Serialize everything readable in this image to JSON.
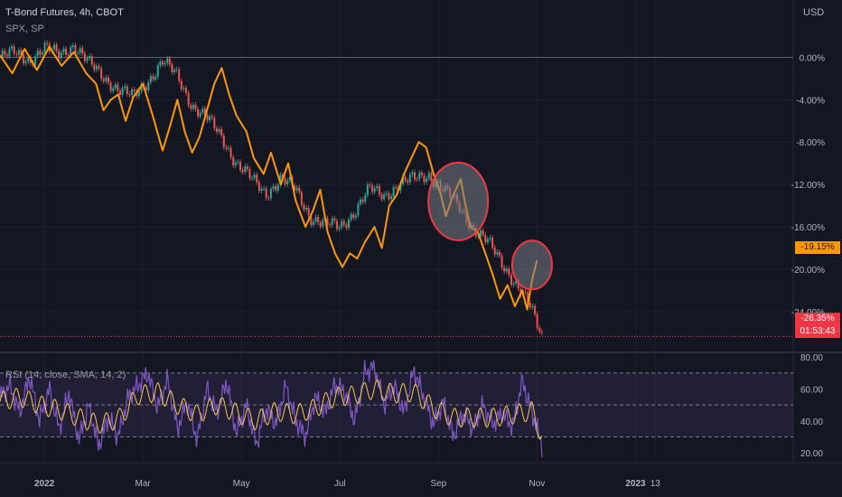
{
  "header": {
    "title": "T-Bond Futures, 4h, CBOT",
    "compare": "SPX, SP",
    "currency": "USD"
  },
  "price_tags": {
    "spx": "-19.15%",
    "tbond": "-26.35%",
    "countdown": "01:53:43"
  },
  "rsi_label": "RSI (14, close, SMA, 14, 2)",
  "colors": {
    "background": "#131722",
    "spx_line": "#ff9800",
    "candle_up": "#26a69a",
    "candle_down": "#ef5350",
    "rsi_line": "#7e57c2",
    "rsi_ma": "#f7c948",
    "highlight_circle": "#f23645"
  },
  "chart_data": [
    {
      "type": "line",
      "title": "T-Bond Futures, 4h, CBOT",
      "y_axis_unit": "%",
      "ylim": [
        -27,
        2
      ],
      "y_ticks": [
        "0.00%",
        "-4.00%",
        "-8.00%",
        "-12.00%",
        "-16.00%",
        "-20.00%",
        "-24.00%"
      ],
      "y_tick_values": [
        0,
        -4,
        -8,
        -12,
        -16,
        -20,
        -24
      ],
      "x_ticks": [
        "2022",
        "Mar",
        "May",
        "Jul",
        "Sep",
        "Nov",
        "2023",
        "13"
      ],
      "x_tick_times": [
        0,
        2,
        4,
        6,
        8,
        10,
        12,
        12.4
      ],
      "xlim": [
        -0.9,
        15.2
      ],
      "series": [
        {
          "name": "SPX",
          "style": "line",
          "points": [
            [
              -0.9,
              0.2
            ],
            [
              -0.65,
              -1.5
            ],
            [
              -0.4,
              0.8
            ],
            [
              -0.15,
              -1.2
            ],
            [
              0.1,
              1.0
            ],
            [
              0.35,
              -0.8
            ],
            [
              0.6,
              0.5
            ],
            [
              0.85,
              -1.5
            ],
            [
              1.05,
              -2.5
            ],
            [
              1.2,
              -5.0
            ],
            [
              1.35,
              -4.0
            ],
            [
              1.5,
              -3.5
            ],
            [
              1.65,
              -6.0
            ],
            [
              1.8,
              -3.8
            ],
            [
              2.0,
              -2.5
            ],
            [
              2.2,
              -5.5
            ],
            [
              2.4,
              -8.8
            ],
            [
              2.55,
              -6.5
            ],
            [
              2.7,
              -4.0
            ],
            [
              2.85,
              -7.0
            ],
            [
              3.0,
              -9.0
            ],
            [
              3.15,
              -7.5
            ],
            [
              3.3,
              -5.0
            ],
            [
              3.45,
              -2.5
            ],
            [
              3.6,
              -1.0
            ],
            [
              3.75,
              -3.5
            ],
            [
              3.9,
              -5.5
            ],
            [
              4.1,
              -7.0
            ],
            [
              4.25,
              -9.5
            ],
            [
              4.45,
              -11.0
            ],
            [
              4.6,
              -9.0
            ],
            [
              4.8,
              -12.0
            ],
            [
              4.95,
              -10.0
            ],
            [
              5.1,
              -13.5
            ],
            [
              5.3,
              -16.0
            ],
            [
              5.45,
              -14.5
            ],
            [
              5.6,
              -12.5
            ],
            [
              5.75,
              -16.5
            ],
            [
              5.9,
              -18.5
            ],
            [
              6.05,
              -19.8
            ],
            [
              6.2,
              -18.5
            ],
            [
              6.35,
              -19.0
            ],
            [
              6.5,
              -17.5
            ],
            [
              6.7,
              -16.0
            ],
            [
              6.85,
              -18.0
            ],
            [
              7.0,
              -14.0
            ],
            [
              7.15,
              -13.0
            ],
            [
              7.3,
              -11.0
            ],
            [
              7.45,
              -9.5
            ],
            [
              7.6,
              -8.0
            ],
            [
              7.75,
              -8.5
            ],
            [
              7.9,
              -11.0
            ],
            [
              8.05,
              -13.0
            ],
            [
              8.15,
              -15.0
            ],
            [
              8.3,
              -13.0
            ],
            [
              8.45,
              -11.5
            ],
            [
              8.55,
              -14.0
            ],
            [
              8.65,
              -16.0
            ],
            [
              8.8,
              -16.5
            ],
            [
              8.95,
              -18.5
            ],
            [
              9.1,
              -20.5
            ],
            [
              9.25,
              -22.8
            ],
            [
              9.4,
              -21.5
            ],
            [
              9.55,
              -23.5
            ],
            [
              9.7,
              -22.0
            ],
            [
              9.8,
              -23.8
            ],
            [
              9.9,
              -21.0
            ],
            [
              10.0,
              -19.15
            ]
          ]
        },
        {
          "name": "T-Bond Futures",
          "style": "candles",
          "points": [
            [
              -0.9,
              0.0
            ],
            [
              -0.6,
              0.4
            ],
            [
              -0.3,
              -0.2
            ],
            [
              0.0,
              0.8
            ],
            [
              0.3,
              0.3
            ],
            [
              0.6,
              1.2
            ],
            [
              0.9,
              -0.6
            ],
            [
              1.2,
              -1.8
            ],
            [
              1.5,
              -3.0
            ],
            [
              1.8,
              -3.8
            ],
            [
              2.1,
              -2.2
            ],
            [
              2.4,
              -0.4
            ],
            [
              2.7,
              -1.8
            ],
            [
              3.0,
              -4.5
            ],
            [
              3.3,
              -5.8
            ],
            [
              3.6,
              -7.5
            ],
            [
              3.9,
              -10.0
            ],
            [
              4.2,
              -11.5
            ],
            [
              4.5,
              -12.8
            ],
            [
              4.8,
              -11.5
            ],
            [
              5.1,
              -12.5
            ],
            [
              5.4,
              -15.0
            ],
            [
              5.7,
              -15.8
            ],
            [
              6.0,
              -16.0
            ],
            [
              6.3,
              -14.5
            ],
            [
              6.6,
              -12.5
            ],
            [
              6.9,
              -13.0
            ],
            [
              7.2,
              -12.0
            ],
            [
              7.5,
              -11.5
            ],
            [
              7.8,
              -11.0
            ],
            [
              8.1,
              -12.5
            ],
            [
              8.4,
              -14.0
            ],
            [
              8.7,
              -16.0
            ],
            [
              9.0,
              -17.5
            ],
            [
              9.3,
              -19.5
            ],
            [
              9.6,
              -21.5
            ],
            [
              9.85,
              -23.5
            ],
            [
              10.1,
              -26.35
            ]
          ]
        }
      ],
      "annotations": [
        {
          "shape": "circle",
          "center": [
            8.4,
            -13.6
          ]
        },
        {
          "shape": "circle",
          "center": [
            9.9,
            -19.6
          ]
        }
      ],
      "reference_lines": [
        0,
        -26.35
      ]
    },
    {
      "type": "line",
      "title": "RSI (14, close, SMA, 14, 2)",
      "ylim": [
        15,
        80
      ],
      "y_ticks": [
        "80.00",
        "60.00",
        "40.00",
        "20.00"
      ],
      "y_tick_values": [
        80,
        60,
        40,
        20
      ],
      "bands": [
        70,
        50,
        30
      ],
      "series": [
        {
          "name": "RSI",
          "points": [
            [
              -0.9,
              55
            ],
            [
              -0.7,
              62
            ],
            [
              -0.5,
              45
            ],
            [
              -0.3,
              68
            ],
            [
              -0.1,
              40
            ],
            [
              0.1,
              60
            ],
            [
              0.3,
              35
            ],
            [
              0.5,
              58
            ],
            [
              0.7,
              28
            ],
            [
              0.9,
              50
            ],
            [
              1.1,
              24
            ],
            [
              1.3,
              42
            ],
            [
              1.5,
              30
            ],
            [
              1.7,
              55
            ],
            [
              1.9,
              62
            ],
            [
              2.1,
              70
            ],
            [
              2.3,
              48
            ],
            [
              2.5,
              66
            ],
            [
              2.7,
              35
            ],
            [
              2.9,
              52
            ],
            [
              3.1,
              28
            ],
            [
              3.3,
              60
            ],
            [
              3.5,
              45
            ],
            [
              3.7,
              65
            ],
            [
              3.9,
              32
            ],
            [
              4.1,
              50
            ],
            [
              4.3,
              25
            ],
            [
              4.5,
              48
            ],
            [
              4.7,
              38
            ],
            [
              4.9,
              62
            ],
            [
              5.1,
              40
            ],
            [
              5.3,
              30
            ],
            [
              5.5,
              55
            ],
            [
              5.7,
              45
            ],
            [
              5.9,
              63
            ],
            [
              6.1,
              58
            ],
            [
              6.3,
              40
            ],
            [
              6.5,
              70
            ],
            [
              6.7,
              74
            ],
            [
              6.9,
              50
            ],
            [
              7.1,
              62
            ],
            [
              7.3,
              45
            ],
            [
              7.5,
              72
            ],
            [
              7.7,
              55
            ],
            [
              7.9,
              38
            ],
            [
              8.1,
              52
            ],
            [
              8.3,
              30
            ],
            [
              8.5,
              45
            ],
            [
              8.7,
              35
            ],
            [
              8.9,
              50
            ],
            [
              9.1,
              38
            ],
            [
              9.3,
              45
            ],
            [
              9.5,
              36
            ],
            [
              9.7,
              65
            ],
            [
              9.9,
              45
            ],
            [
              10.1,
              25
            ]
          ]
        },
        {
          "name": "RSI-based MA",
          "points": [
            [
              -0.9,
              52
            ],
            [
              -0.5,
              55
            ],
            [
              -0.1,
              50
            ],
            [
              0.3,
              47
            ],
            [
              0.7,
              42
            ],
            [
              1.1,
              38
            ],
            [
              1.5,
              41
            ],
            [
              1.9,
              56
            ],
            [
              2.3,
              58
            ],
            [
              2.7,
              50
            ],
            [
              3.1,
              44
            ],
            [
              3.5,
              50
            ],
            [
              3.9,
              45
            ],
            [
              4.3,
              40
            ],
            [
              4.7,
              46
            ],
            [
              5.1,
              44
            ],
            [
              5.5,
              48
            ],
            [
              5.9,
              55
            ],
            [
              6.3,
              56
            ],
            [
              6.7,
              60
            ],
            [
              7.1,
              57
            ],
            [
              7.5,
              58
            ],
            [
              7.9,
              48
            ],
            [
              8.3,
              42
            ],
            [
              8.7,
              42
            ],
            [
              9.1,
              42
            ],
            [
              9.5,
              44
            ],
            [
              9.9,
              46
            ],
            [
              10.1,
              30
            ]
          ]
        }
      ]
    }
  ]
}
